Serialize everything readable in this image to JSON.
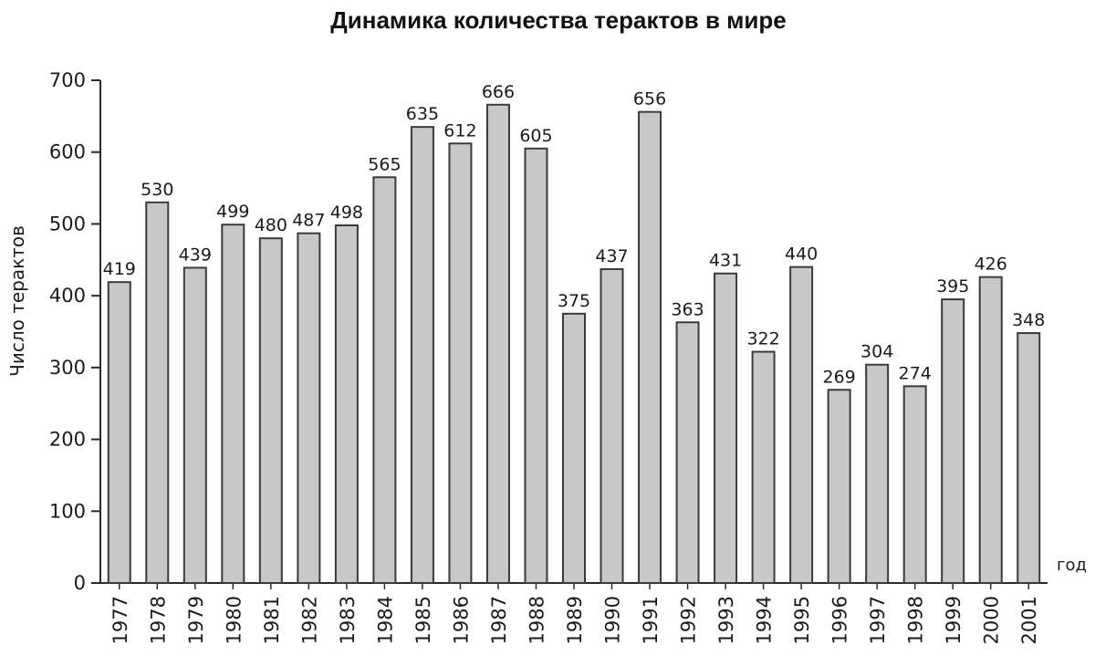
{
  "chart_data": {
    "type": "bar",
    "title": "Динамика количества терактов в мире",
    "ylabel": "Число терактов",
    "xlabel": "год",
    "ylim": [
      0,
      700
    ],
    "yticks": [
      0,
      100,
      200,
      300,
      400,
      500,
      600,
      700
    ],
    "grid": false,
    "categories": [
      "1977",
      "1978",
      "1979",
      "1980",
      "1981",
      "1982",
      "1983",
      "1984",
      "1985",
      "1986",
      "1987",
      "1988",
      "1989",
      "1990",
      "1991",
      "1992",
      "1993",
      "1994",
      "1995",
      "1996",
      "1997",
      "1998",
      "1999",
      "2000",
      "2001"
    ],
    "values": [
      419,
      530,
      439,
      499,
      480,
      487,
      498,
      565,
      635,
      612,
      666,
      605,
      375,
      437,
      656,
      363,
      431,
      322,
      440,
      269,
      304,
      274,
      395,
      426,
      348
    ],
    "colors": {
      "bar_fill": "#c8c8c8",
      "bar_stroke": "#3a3a3a",
      "axis": "#2a2a2a"
    }
  }
}
